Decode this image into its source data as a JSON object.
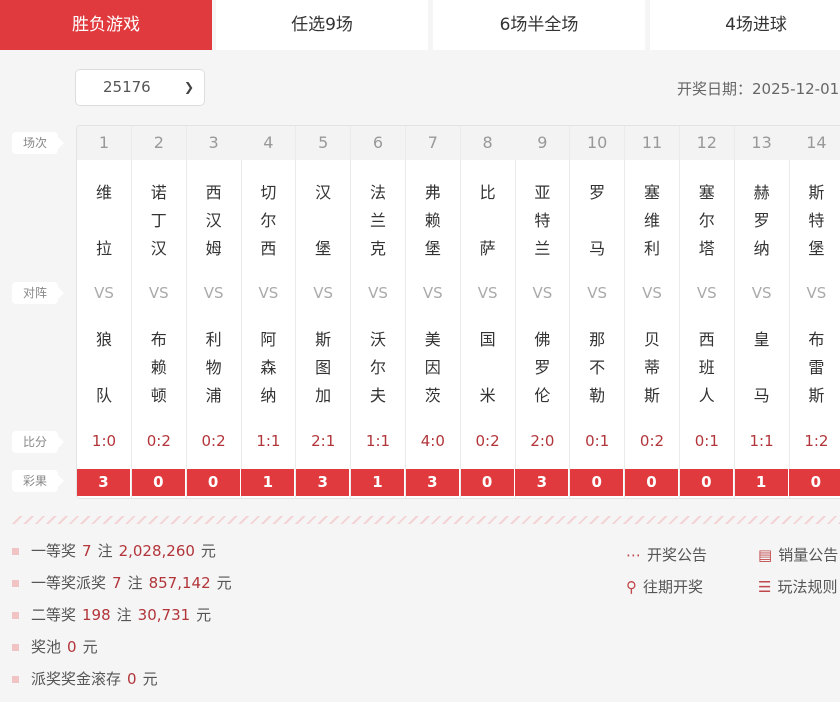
{
  "tabs": [
    {
      "label": "胜负游戏",
      "active": true
    },
    {
      "label": "任选9场"
    },
    {
      "label": "6场半全场"
    },
    {
      "label": "4场进球"
    }
  ],
  "issue_select": {
    "value": "25176"
  },
  "draw_date": "开奖日期：2025-12-01",
  "row_labels": {
    "match_no": "场次",
    "fixture": "对阵",
    "score": "比分",
    "result": "彩果"
  },
  "vs_label": "VS",
  "matches": [
    {
      "no": "1",
      "home": "维拉",
      "away": "狼队",
      "score": "1:0",
      "result": "3"
    },
    {
      "no": "2",
      "home": "诺丁汉",
      "away": "布赖顿",
      "score": "0:2",
      "result": "0"
    },
    {
      "no": "3",
      "home": "西汉姆",
      "away": "利物浦",
      "score": "0:2",
      "result": "0"
    },
    {
      "no": "4",
      "home": "切尔西",
      "away": "阿森纳",
      "score": "1:1",
      "result": "1"
    },
    {
      "no": "5",
      "home": "汉堡",
      "away": "斯图加",
      "score": "2:1",
      "result": "3"
    },
    {
      "no": "6",
      "home": "法兰克",
      "away": "沃尔夫",
      "score": "1:1",
      "result": "1"
    },
    {
      "no": "7",
      "home": "弗赖堡",
      "away": "美因茨",
      "score": "4:0",
      "result": "3"
    },
    {
      "no": "8",
      "home": "比萨",
      "away": "国米",
      "score": "0:2",
      "result": "0"
    },
    {
      "no": "9",
      "home": "亚特兰",
      "away": "佛罗伦",
      "score": "2:0",
      "result": "3"
    },
    {
      "no": "10",
      "home": "罗马",
      "away": "那不勒",
      "score": "0:1",
      "result": "0"
    },
    {
      "no": "11",
      "home": "塞维利",
      "away": "贝蒂斯",
      "score": "0:2",
      "result": "0"
    },
    {
      "no": "12",
      "home": "塞尔塔",
      "away": "西班人",
      "score": "0:1",
      "result": "0"
    },
    {
      "no": "13",
      "home": "赫罗纳",
      "away": "皇马",
      "score": "1:1",
      "result": "1"
    },
    {
      "no": "14",
      "home": "斯特堡",
      "away": "布雷斯",
      "score": "1:2",
      "result": "0"
    }
  ],
  "prizes": [
    {
      "label": "一等奖",
      "count": "7",
      "unit_count": "注",
      "amount": "2,028,260",
      "unit": "元"
    },
    {
      "label": "一等奖派奖",
      "count": "7",
      "unit_count": "注",
      "amount": "857,142",
      "unit": "元"
    },
    {
      "label": "二等奖",
      "count": "198",
      "unit_count": "注",
      "amount": "30,731",
      "unit": "元"
    },
    {
      "label": "奖池",
      "amount": "0",
      "unit": "元"
    },
    {
      "label": "派奖奖金滚存",
      "amount": "0",
      "unit": "元"
    }
  ],
  "links": [
    {
      "label": "开奖公告",
      "icon": "ellipsis-circle-icon"
    },
    {
      "label": "销量公告",
      "icon": "document-icon"
    },
    {
      "label": "往期开奖",
      "icon": "trophy-icon"
    },
    {
      "label": "玩法规则",
      "icon": "list-icon"
    }
  ],
  "colors": {
    "accent": "#e03a3e",
    "value": "#b2353a"
  }
}
